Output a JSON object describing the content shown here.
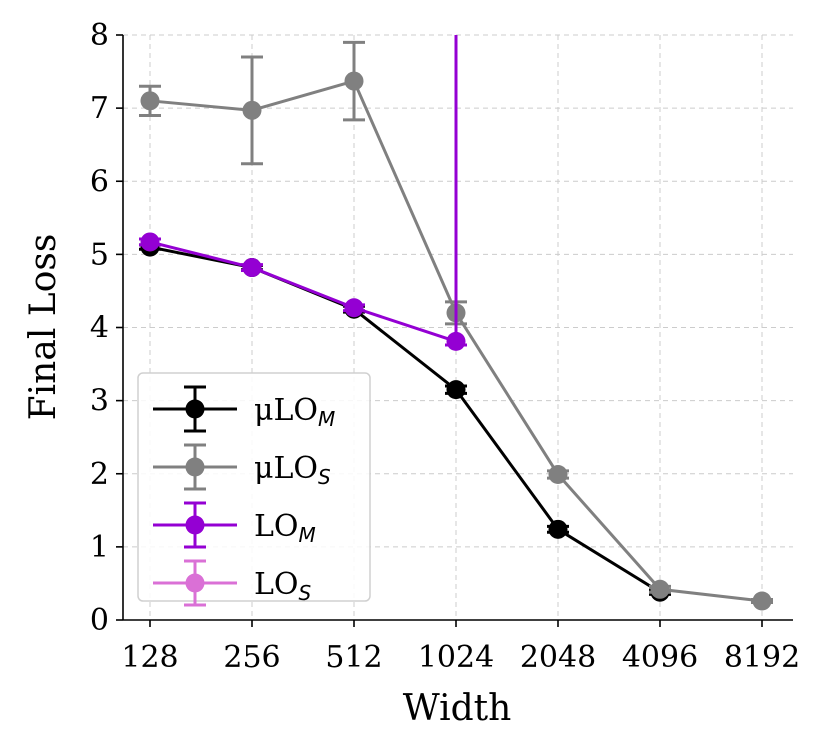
{
  "chart_data": {
    "type": "line",
    "title": "",
    "xlabel": "Width",
    "ylabel": "Final Loss",
    "x": [
      128,
      256,
      512,
      1024,
      2048,
      4096,
      8192
    ],
    "x_tick_labels": [
      "128",
      "256",
      "512",
      "1024",
      "2048",
      "4096",
      "8192"
    ],
    "y_ticks": [
      0,
      1,
      2,
      3,
      4,
      5,
      6,
      7,
      8
    ],
    "y_tick_labels": [
      "0",
      "1",
      "2",
      "3",
      "4",
      "5",
      "6",
      "7",
      "8"
    ],
    "ylim": [
      0,
      8
    ],
    "x_scale": "log2",
    "grid": true,
    "legend_position": "lower-left",
    "series": [
      {
        "name": "μLO",
        "subscript": "M",
        "color": "#000000",
        "x": [
          128,
          256,
          512,
          1024,
          2048,
          4096
        ],
        "values": [
          5.1,
          4.82,
          4.25,
          3.15,
          1.24,
          0.38
        ],
        "err": [
          0.03,
          0.03,
          0.04,
          0.05,
          0.04,
          0.03
        ]
      },
      {
        "name": "μLO",
        "subscript": "S",
        "color": "#808080",
        "x": [
          128,
          256,
          512,
          1024,
          2048,
          4096,
          8192
        ],
        "values": [
          7.1,
          6.97,
          7.37,
          4.2,
          1.99,
          0.42,
          0.26
        ],
        "err": [
          0.2,
          0.73,
          0.53,
          0.15,
          0.05,
          0.04,
          0.02
        ]
      },
      {
        "name": "LO",
        "subscript": "M",
        "color": "#9400D3",
        "x": [
          128,
          256,
          512,
          1024
        ],
        "values": [
          5.17,
          4.82,
          4.27,
          3.81
        ],
        "err_low": [
          0.04,
          0.04,
          0.04,
          0.05
        ],
        "err_high": [
          0.04,
          0.04,
          0.04,
          4.5
        ]
      },
      {
        "name": "LO",
        "subscript": "S",
        "color": "#DA70D6",
        "x": [],
        "values": []
      }
    ]
  }
}
